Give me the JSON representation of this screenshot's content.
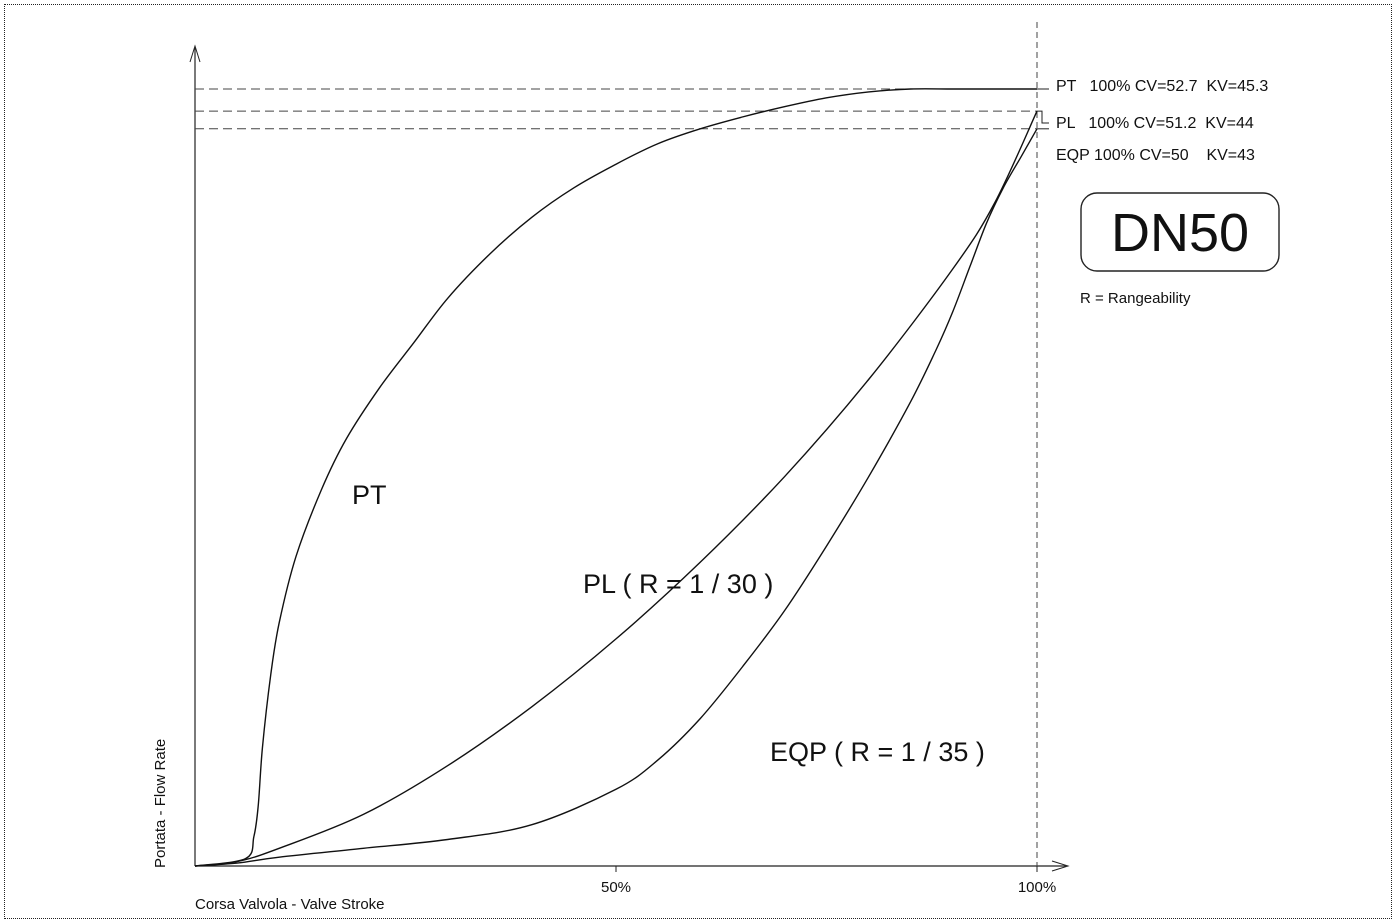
{
  "chart_data": {
    "type": "line",
    "xlabel": "Corsa Valvola - Valve Stroke",
    "ylabel": "Portata - Flow Rate",
    "x_ticks": [
      "50%",
      "100%"
    ],
    "xlim": [
      0,
      100
    ],
    "ylim": [
      0,
      52.7
    ],
    "series": [
      {
        "name": "PT",
        "label": "PT",
        "x": [
          0,
          6,
          7,
          7.5,
          8,
          9,
          10,
          12,
          15,
          18,
          22,
          26,
          30,
          35,
          40,
          45,
          50,
          55,
          60,
          65,
          70,
          75,
          80,
          85,
          90,
          95,
          100
        ],
        "y": [
          0,
          0.5,
          2,
          4,
          8,
          13,
          16.5,
          21,
          25.5,
          29,
          32.5,
          35.5,
          38.5,
          41.5,
          44,
          46,
          47.6,
          49,
          50,
          50.8,
          51.5,
          52.1,
          52.5,
          52.7,
          52.7,
          52.7,
          52.7
        ]
      },
      {
        "name": "PL",
        "label": "PL ( R = 1 / 30 )",
        "x": [
          0,
          5,
          10,
          20,
          30,
          40,
          50,
          60,
          70,
          80,
          90,
          95,
          100
        ],
        "y": [
          0,
          0.3,
          1.2,
          3.5,
          6.8,
          10.8,
          15.4,
          20.6,
          26.4,
          33,
          40.5,
          45,
          51.2
        ]
      },
      {
        "name": "EQP",
        "label": "EQP ( R = 1 / 35 )",
        "x": [
          0,
          5,
          10,
          20,
          30,
          40,
          50,
          55,
          60,
          65,
          70,
          75,
          80,
          85,
          88,
          90,
          92,
          94,
          96,
          98,
          100
        ],
        "y": [
          0,
          0.2,
          0.6,
          1.2,
          1.8,
          2.8,
          5.2,
          7.2,
          10,
          13.5,
          17.3,
          21.7,
          26.4,
          31.5,
          35,
          37.6,
          40.6,
          43.6,
          46,
          48,
          50
        ]
      }
    ],
    "reference_lines": [
      {
        "series": "PT",
        "text": "PT   100% CV=52.7  KV=45.3",
        "y": 52.7
      },
      {
        "series": "PL",
        "text": "PL   100% CV=51.2  KV=44",
        "y": 51.2
      },
      {
        "series": "EQP",
        "text": "EQP 100% CV=50    KV=43",
        "y": 50
      }
    ],
    "annotations": {
      "badge": "DN50",
      "note": "R = Rangeability"
    },
    "grid": false,
    "legend": "none"
  }
}
